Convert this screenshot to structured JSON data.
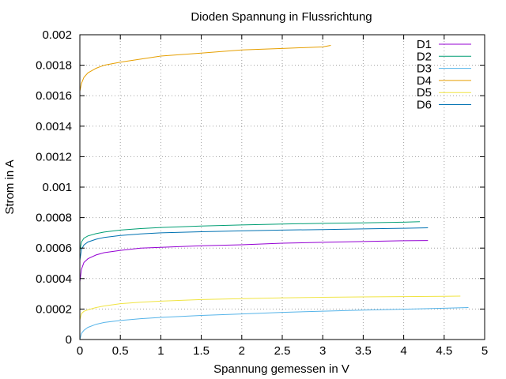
{
  "chart_data": {
    "type": "line",
    "title": "Dioden Spannung in Flussrichtung",
    "xlabel": "Spannung gemessen in V",
    "ylabel": "Strom in A",
    "xlim": [
      0,
      5
    ],
    "ylim": [
      0,
      0.002
    ],
    "xticks": [
      "0",
      "0.5",
      "1",
      "1.5",
      "2",
      "2.5",
      "3",
      "3.5",
      "4",
      "4.5",
      "5"
    ],
    "yticks": [
      "0",
      "0.0002",
      "0.0004",
      "0.0006",
      "0.0008",
      "0.001",
      "0.0012",
      "0.0014",
      "0.0016",
      "0.0018",
      "0.002"
    ],
    "grid": true,
    "legend_position": "top-right",
    "series": [
      {
        "name": "D1",
        "color": "#9400d3",
        "x": [
          0,
          0.02,
          0.05,
          0.1,
          0.2,
          0.3,
          0.5,
          0.75,
          1.0,
          1.5,
          2.0,
          2.5,
          3.0,
          3.5,
          4.0,
          4.3
        ],
        "y": [
          0.00038,
          0.00046,
          0.000505,
          0.00053,
          0.000555,
          0.00057,
          0.000585,
          0.0006,
          0.000605,
          0.000615,
          0.000622,
          0.000632,
          0.000638,
          0.000643,
          0.000648,
          0.00065
        ]
      },
      {
        "name": "D2",
        "color": "#009e73",
        "x": [
          0,
          0.02,
          0.05,
          0.1,
          0.2,
          0.3,
          0.5,
          0.75,
          1.0,
          1.5,
          2.0,
          2.5,
          3.0,
          3.5,
          4.0,
          4.2
        ],
        "y": [
          0.00058,
          0.00064,
          0.000665,
          0.00068,
          0.000695,
          0.000705,
          0.000718,
          0.000728,
          0.000735,
          0.000745,
          0.000752,
          0.000758,
          0.000762,
          0.000766,
          0.00077,
          0.000773
        ]
      },
      {
        "name": "D3",
        "color": "#56b4e9",
        "x": [
          0,
          0.02,
          0.05,
          0.1,
          0.2,
          0.3,
          0.5,
          0.75,
          1.0,
          1.5,
          2.0,
          2.5,
          3.0,
          3.5,
          4.0,
          4.5,
          4.8
        ],
        "y": [
          0,
          4e-05,
          6e-05,
          8e-05,
          0.0001,
          0.000112,
          0.000125,
          0.000137,
          0.000145,
          0.000158,
          0.000168,
          0.000178,
          0.000186,
          0.000193,
          0.000199,
          0.000205,
          0.00021
        ]
      },
      {
        "name": "D4",
        "color": "#e69f00",
        "x": [
          0,
          0.02,
          0.05,
          0.1,
          0.2,
          0.3,
          0.5,
          0.75,
          1.0,
          1.5,
          2.0,
          2.5,
          3.0,
          3.1
        ],
        "y": [
          0.00163,
          0.00168,
          0.00172,
          0.00175,
          0.00178,
          0.0018,
          0.00182,
          0.00184,
          0.00186,
          0.00188,
          0.0019,
          0.00191,
          0.00192,
          0.00193
        ]
      },
      {
        "name": "D5",
        "color": "#f0e442",
        "x": [
          0,
          0.02,
          0.05,
          0.1,
          0.2,
          0.3,
          0.5,
          0.75,
          1.0,
          1.5,
          2.0,
          2.5,
          3.0,
          3.5,
          4.0,
          4.5,
          4.7
        ],
        "y": [
          0.00013,
          0.00017,
          0.000185,
          0.000195,
          0.00021,
          0.00022,
          0.000235,
          0.000245,
          0.000252,
          0.000262,
          0.000268,
          0.000273,
          0.000277,
          0.00028,
          0.000282,
          0.000284,
          0.000285
        ]
      },
      {
        "name": "D6",
        "color": "#0072b2",
        "x": [
          0,
          0.02,
          0.05,
          0.1,
          0.2,
          0.3,
          0.5,
          0.75,
          1.0,
          1.5,
          2.0,
          2.5,
          3.0,
          3.5,
          4.0,
          4.3
        ],
        "y": [
          0.00052,
          0.00059,
          0.00062,
          0.00064,
          0.000658,
          0.00067,
          0.000683,
          0.000693,
          0.0007,
          0.000707,
          0.000713,
          0.000718,
          0.000722,
          0.000726,
          0.00073,
          0.000733
        ]
      }
    ]
  }
}
